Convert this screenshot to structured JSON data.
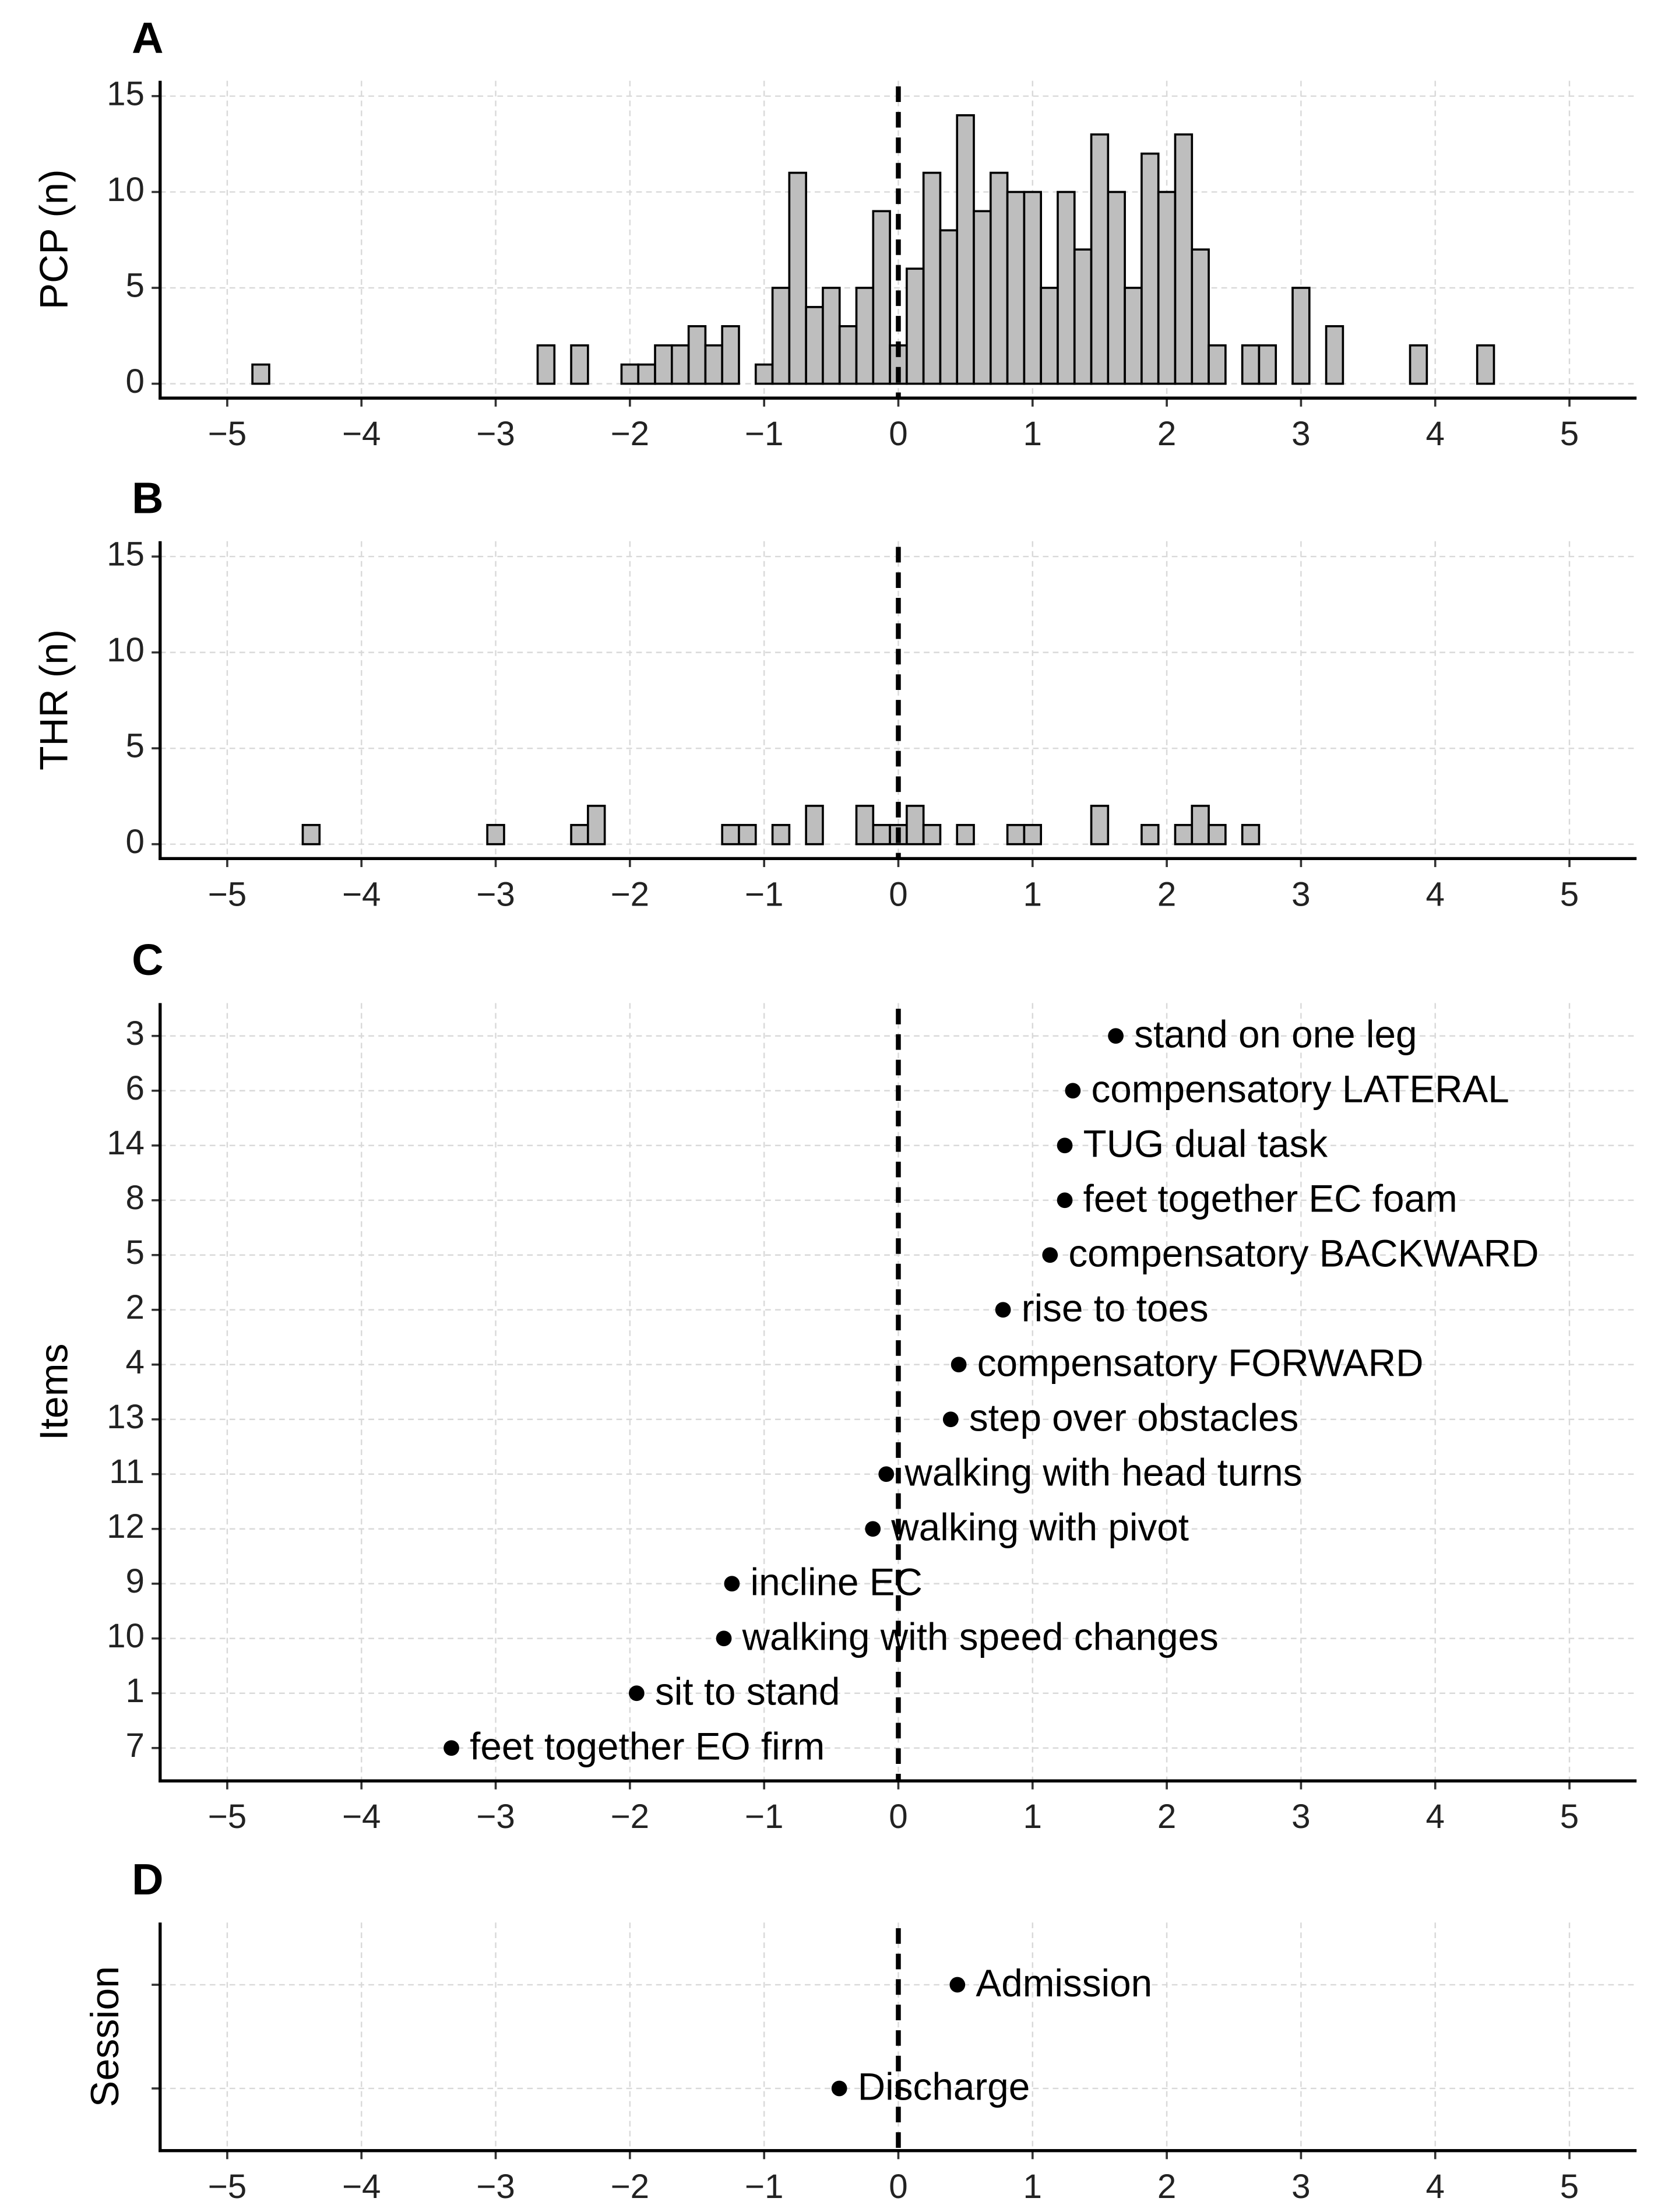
{
  "chart_data": [
    {
      "type": "histogram",
      "panel": "A",
      "ylabel": "PCP (n)",
      "bins": [
        -4.8125,
        -4.6875,
        -4.5625,
        -4.4375,
        -4.3125,
        -4.1875,
        -4.0625,
        -3.9375,
        -3.8125,
        -3.6875,
        -3.5625,
        -3.4375,
        -3.3125,
        -3.1875,
        -3.0625,
        -2.9375,
        -2.8125,
        -2.6875,
        -2.5625,
        -2.4375,
        -2.3125,
        -2.1875,
        -2.0625,
        -1.9375,
        -1.8125,
        -1.6875,
        -1.5625,
        -1.4375,
        -1.3125,
        -1.1875,
        -1.0625,
        -0.9375,
        -0.8125,
        -0.6875,
        -0.5625,
        -0.4375,
        -0.3125,
        -0.1875,
        -0.0625,
        0.0625,
        0.1875,
        0.3125,
        0.4375,
        0.5625,
        0.6875,
        0.8125,
        0.9375,
        1.0625,
        1.1875,
        1.3125,
        1.4375,
        1.5625,
        1.6875,
        1.8125,
        1.9375,
        2.0625,
        2.1875,
        2.3125,
        2.4375,
        2.5625,
        2.6875,
        2.8125,
        2.9375,
        3.0625,
        3.1875,
        3.3125,
        3.4375,
        3.5625,
        3.6875,
        3.8125,
        3.9375,
        4.0625,
        4.1875,
        4.3125,
        4.4375
      ],
      "values": [
        1,
        0,
        0,
        0,
        0,
        0,
        0,
        0,
        0,
        0,
        0,
        0,
        0,
        0,
        0,
        0,
        0,
        2,
        0,
        2,
        0,
        0,
        1,
        1,
        2,
        2,
        3,
        2,
        3,
        0,
        1,
        5,
        11,
        4,
        5,
        3,
        5,
        9,
        2,
        6,
        11,
        8,
        14,
        9,
        11,
        10,
        10,
        5,
        10,
        7,
        13,
        10,
        5,
        12,
        10,
        13,
        7,
        2,
        0,
        2,
        2,
        0,
        5,
        0,
        3,
        0,
        0,
        0,
        0,
        2,
        0,
        0,
        0,
        2
      ],
      "color": "#bebebe",
      "vline": 0,
      "xlim": [
        -5.5,
        5.5
      ],
      "xticks": [
        {
          "value": -5,
          "label": "−5"
        },
        {
          "value": -4,
          "label": "−4"
        },
        {
          "value": -3,
          "label": "−3"
        },
        {
          "value": -2,
          "label": "−2"
        },
        {
          "value": -1,
          "label": "−1"
        },
        0,
        1,
        2,
        3,
        4,
        5
      ],
      "ylim": [
        -0.75,
        15.8
      ],
      "yticks": [
        0,
        5,
        10,
        15
      ],
      "grid": true
    },
    {
      "type": "histogram",
      "panel": "B",
      "ylabel": "THR (n)",
      "bins": [
        -4.4375,
        -4.3125,
        -4.1875,
        -4.0625,
        -3.9375,
        -3.8125,
        -3.6875,
        -3.5625,
        -3.4375,
        -3.3125,
        -3.1875,
        -3.0625,
        -2.9375,
        -2.8125,
        -2.6875,
        -2.5625,
        -2.4375,
        -2.3125,
        -2.1875,
        -2.0625,
        -1.9375,
        -1.8125,
        -1.6875,
        -1.5625,
        -1.4375,
        -1.3125,
        -1.1875,
        -1.0625,
        -0.9375,
        -0.8125,
        -0.6875,
        -0.5625,
        -0.4375,
        -0.3125,
        -0.1875,
        -0.0625,
        0.0625,
        0.1875,
        0.3125,
        0.4375,
        0.5625,
        0.6875,
        0.8125,
        0.9375,
        1.0625,
        1.1875,
        1.3125,
        1.4375,
        1.5625,
        1.6875,
        1.8125,
        1.9375,
        2.0625,
        2.1875,
        2.3125,
        2.4375,
        2.5625,
        2.6875
      ],
      "values": [
        1,
        0,
        0,
        0,
        0,
        0,
        0,
        0,
        0,
        0,
        0,
        1,
        0,
        0,
        0,
        0,
        1,
        2,
        0,
        0,
        0,
        0,
        0,
        0,
        0,
        1,
        1,
        0,
        1,
        0,
        2,
        0,
        0,
        2,
        1,
        1,
        2,
        1,
        0,
        1,
        0,
        0,
        1,
        1,
        0,
        0,
        0,
        2,
        0,
        0,
        1,
        0,
        1,
        2,
        1,
        0,
        1
      ],
      "color": "#bebebe",
      "vline": 0,
      "xlim": [
        -5.5,
        5.5
      ],
      "xticks": [
        {
          "value": -5,
          "label": "−5"
        },
        {
          "value": -4,
          "label": "−4"
        },
        {
          "value": -3,
          "label": "−3"
        },
        {
          "value": -2,
          "label": "−2"
        },
        {
          "value": -1,
          "label": "−1"
        },
        0,
        1,
        2,
        3,
        4,
        5
      ],
      "ylim": [
        -0.75,
        15.8
      ],
      "yticks": [
        0,
        5,
        10,
        15
      ],
      "grid": true
    },
    {
      "type": "dot",
      "panel": "C",
      "ylabel": "Items",
      "categories": [
        "3",
        "6",
        "14",
        "8",
        "5",
        "2",
        "4",
        "13",
        "11",
        "12",
        "9",
        "10",
        "1",
        "7"
      ],
      "values": [
        1.62,
        1.3,
        1.24,
        1.24,
        1.13,
        0.78,
        0.45,
        0.39,
        -0.09,
        -0.19,
        -1.24,
        -1.3,
        -1.95,
        -3.33
      ],
      "labels": [
        "stand on one leg",
        "compensatory LATERAL",
        "TUG dual task",
        "feet together EC foam",
        "compensatory BACKWARD",
        "rise to toes",
        "compensatory FORWARD",
        "step over obstacles",
        "walking with head turns",
        "walking with pivot",
        "incline EC",
        "walking with speed changes",
        "sit to stand",
        "feet together EO firm"
      ],
      "color": "#000000",
      "vline": 0,
      "xlim": [
        -5.5,
        5.5
      ],
      "xticks": [
        {
          "value": -5,
          "label": "−5"
        },
        {
          "value": -4,
          "label": "−4"
        },
        {
          "value": -3,
          "label": "−3"
        },
        {
          "value": -2,
          "label": "−2"
        },
        {
          "value": -1,
          "label": "−1"
        },
        0,
        1,
        2,
        3,
        4,
        5
      ],
      "grid": true
    },
    {
      "type": "dot",
      "panel": "D",
      "ylabel": "Session",
      "categories": [
        "Admission",
        "Discharge"
      ],
      "values": [
        0.44,
        -0.44
      ],
      "color": "#000000",
      "vline": 0,
      "xlim": [
        -5.5,
        5.5
      ],
      "xticks": [
        {
          "value": -5,
          "label": "−5"
        },
        {
          "value": -4,
          "label": "−4"
        },
        {
          "value": -3,
          "label": "−3"
        },
        {
          "value": -2,
          "label": "−2"
        },
        {
          "value": -1,
          "label": "−1"
        },
        0,
        1,
        2,
        3,
        4,
        5
      ],
      "grid": true
    }
  ]
}
